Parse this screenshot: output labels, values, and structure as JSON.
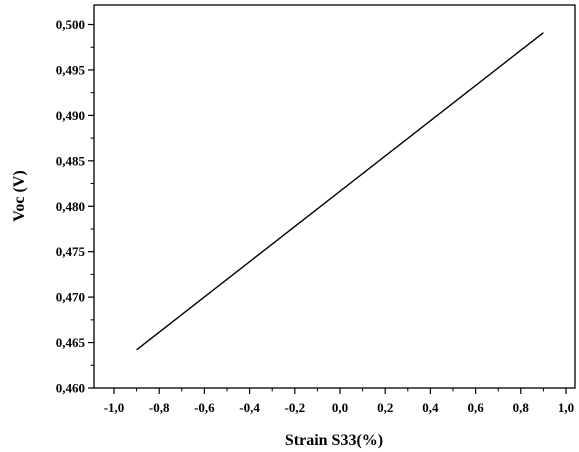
{
  "chart_data": {
    "type": "line",
    "title": "",
    "xlabel": "Strain S33(%)",
    "ylabel": "Voc (V)",
    "xlim": [
      -1.1,
      1.05
    ],
    "ylim": [
      0.46,
      0.5005
    ],
    "x_ticks": [
      -1.0,
      -0.8,
      -0.6,
      -0.4,
      -0.2,
      0.0,
      0.2,
      0.4,
      0.6,
      0.8,
      1.0
    ],
    "x_tick_labels": [
      "-1,0",
      "-0,8",
      "-0,6",
      "-0,4",
      "-0,2",
      "0,0",
      "0,2",
      "0,4",
      "0,6",
      "0,8",
      "1,0"
    ],
    "y_ticks": [
      0.46,
      0.465,
      0.47,
      0.475,
      0.48,
      0.485,
      0.49,
      0.495,
      0.5
    ],
    "y_tick_labels": [
      "0,460",
      "0,465",
      "0,470",
      "0,475",
      "0,480",
      "0,485",
      "0,490",
      "0,495",
      "0,500"
    ],
    "grid": false,
    "legend": "none",
    "series": [
      {
        "color": "#000000",
        "x": [
          -0.9,
          0.9
        ],
        "y": [
          0.4642,
          0.4991
        ]
      }
    ]
  }
}
